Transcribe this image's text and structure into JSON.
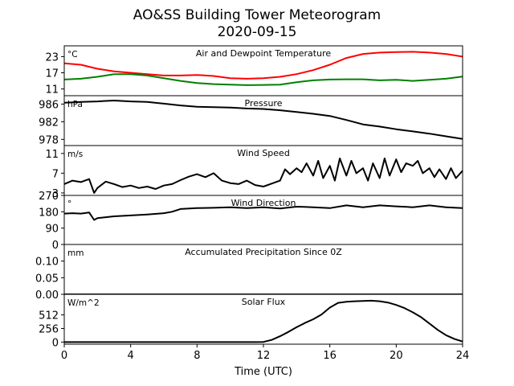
{
  "title_line1": "AO&SS Building Tower Meteorogram",
  "title_line2": "2020-09-15",
  "chart_data": {
    "type": "line",
    "xlabel": "Time (UTC)",
    "xlim": [
      0,
      24
    ],
    "xticks": [
      0,
      4,
      8,
      12,
      16,
      20,
      24
    ],
    "panels": [
      {
        "id": "temp",
        "title": "Air and Dewpoint Temperature",
        "unit": "°C",
        "ylim": [
          8.5,
          27
        ],
        "yticks": [
          11,
          17,
          23
        ],
        "series": [
          {
            "color": "#ff0000",
            "x": [
              0,
              1,
              2,
              3,
              4,
              5,
              6,
              7,
              8,
              9,
              10,
              11,
              12,
              13,
              14,
              15,
              16,
              17,
              18,
              19,
              20,
              21,
              22,
              23,
              24
            ],
            "y": [
              20.5,
              20,
              18.5,
              17.5,
              17,
              16.5,
              16,
              16,
              16.2,
              15.8,
              15,
              14.8,
              15,
              15.5,
              16.5,
              18,
              20,
              22.5,
              24,
              24.5,
              24.7,
              24.8,
              24.5,
              24,
              23
            ]
          },
          {
            "color": "#008000",
            "x": [
              0,
              1,
              2,
              3,
              4,
              5,
              6,
              7,
              8,
              9,
              10,
              11,
              12,
              13,
              14,
              15,
              16,
              17,
              18,
              19,
              20,
              21,
              22,
              23,
              24
            ],
            "y": [
              14.5,
              14.8,
              15.5,
              16.5,
              16.5,
              16,
              15,
              14,
              13.2,
              12.8,
              12.6,
              12.4,
              12.5,
              12.6,
              13.5,
              14.2,
              14.5,
              14.6,
              14.6,
              14.2,
              14.4,
              14,
              14.4,
              14.8,
              15.6
            ]
          }
        ]
      },
      {
        "id": "pressure",
        "title": "Pressure",
        "unit": "hPa",
        "ylim": [
          976.6,
          987.9
        ],
        "yticks": [
          978,
          982,
          986
        ],
        "series": [
          {
            "color": "#000000",
            "x": [
              0,
              1,
              2,
              3,
              4,
              5,
              6,
              7,
              8,
              9,
              10,
              11,
              12,
              13,
              14,
              15,
              16,
              17,
              18,
              19,
              20,
              21,
              22,
              23,
              24
            ],
            "y": [
              986.3,
              986.5,
              986.6,
              986.8,
              986.6,
              986.5,
              986.1,
              985.7,
              985.4,
              985.3,
              985.2,
              985.0,
              984.9,
              984.6,
              984.2,
              983.8,
              983.3,
              982.4,
              981.4,
              980.9,
              980.3,
              979.8,
              979.3,
              978.7,
              978.1
            ]
          }
        ]
      },
      {
        "id": "wind_speed",
        "title": "Wind Speed",
        "unit": "m/s",
        "ylim": [
          2.5,
          12.6
        ],
        "yticks": [
          3,
          7,
          11
        ],
        "series": [
          {
            "color": "#000000",
            "x": [
              0,
              0.5,
              1,
              1.5,
              1.8,
              2,
              2.5,
              3,
              3.5,
              4,
              4.5,
              5,
              5.5,
              6,
              6.5,
              7,
              7.5,
              8,
              8.5,
              9,
              9.5,
              10,
              10.5,
              11,
              11.5,
              12,
              12.5,
              13,
              13.3,
              13.6,
              14,
              14.3,
              14.6,
              15,
              15.3,
              15.6,
              16,
              16.3,
              16.6,
              17,
              17.3,
              17.6,
              18,
              18.3,
              18.6,
              19,
              19.3,
              19.6,
              20,
              20.3,
              20.6,
              21,
              21.3,
              21.6,
              22,
              22.3,
              22.6,
              23,
              23.3,
              23.6,
              24
            ],
            "y": [
              4.8,
              5.5,
              5.2,
              5.8,
              3.0,
              4.0,
              5.3,
              4.8,
              4.2,
              4.5,
              4.0,
              4.3,
              3.8,
              4.5,
              4.8,
              5.6,
              6.3,
              6.8,
              6.2,
              7.0,
              5.5,
              5.0,
              4.8,
              5.5,
              4.6,
              4.3,
              4.9,
              5.5,
              7.8,
              6.8,
              8.0,
              7.2,
              9.0,
              6.5,
              9.5,
              6.0,
              8.5,
              5.5,
              10.0,
              6.5,
              9.5,
              7.0,
              8.0,
              5.5,
              9.0,
              6.0,
              10.0,
              6.5,
              9.8,
              7.2,
              9.0,
              8.5,
              9.5,
              7.0,
              8.0,
              6.2,
              7.8,
              5.8,
              8.0,
              6.0,
              7.5
            ]
          }
        ]
      },
      {
        "id": "wind_direction",
        "title": "Wind Direction",
        "unit": "°",
        "ylim": [
          0,
          270
        ],
        "yticks": [
          0,
          90,
          180,
          270
        ],
        "series": [
          {
            "color": "#000000",
            "x": [
              0,
              0.5,
              1,
              1.5,
              1.8,
              2,
              2.5,
              3,
              4,
              5,
              6,
              6.5,
              7,
              8,
              9,
              10,
              11,
              12,
              13,
              14,
              15,
              16,
              17,
              18,
              19,
              20,
              21,
              22,
              23,
              24
            ],
            "y": [
              170,
              172,
              170,
              176,
              135,
              145,
              150,
              155,
              160,
              165,
              172,
              180,
              195,
              200,
              202,
              205,
              200,
              205,
              198,
              208,
              205,
              200,
              215,
              205,
              215,
              210,
              205,
              215,
              205,
              200
            ]
          }
        ]
      },
      {
        "id": "precip",
        "title": "Accumulated Precipitation Since 0Z",
        "unit": "mm",
        "ylim": [
          0,
          0.15
        ],
        "yticks": [
          0.0,
          0.05,
          0.1
        ],
        "yticklabels": [
          "0.00",
          "0.05",
          "0.10"
        ],
        "series": [
          {
            "color": "#000000",
            "x": [
              0,
              24
            ],
            "y": [
              0,
              0
            ]
          }
        ]
      },
      {
        "id": "solar",
        "title": "Solar Flux",
        "unit": "W/m^2",
        "ylim": [
          -40,
          900
        ],
        "yticks": [
          0,
          256,
          512
        ],
        "series": [
          {
            "color": "#000000",
            "x": [
              0,
              11,
              11.5,
              12,
              12.5,
              13,
              13.5,
              14,
              14.5,
              15,
              15.5,
              16,
              16.5,
              17,
              17.5,
              18,
              18.5,
              19,
              19.5,
              20,
              20.5,
              21,
              21.5,
              22,
              22.5,
              23,
              23.5,
              24
            ],
            "y": [
              0,
              0,
              0,
              2,
              40,
              110,
              190,
              280,
              360,
              430,
              520,
              650,
              740,
              760,
              770,
              775,
              780,
              770,
              745,
              700,
              640,
              560,
              470,
              350,
              230,
              130,
              60,
              10
            ]
          }
        ]
      }
    ]
  }
}
